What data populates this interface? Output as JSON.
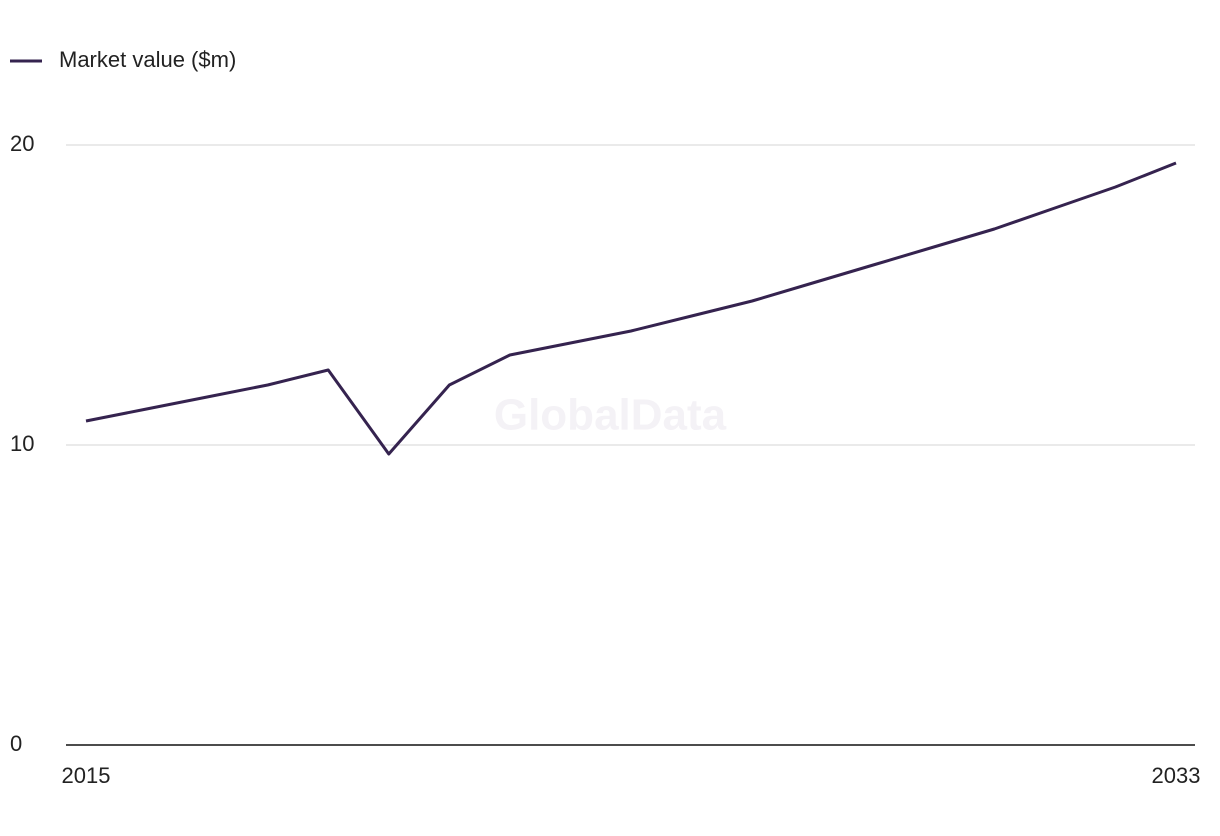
{
  "chart_data": {
    "type": "line",
    "watermark": "GlobalData",
    "x": [
      2015,
      2016,
      2017,
      2018,
      2019,
      2020,
      2021,
      2022,
      2023,
      2024,
      2025,
      2026,
      2027,
      2028,
      2029,
      2030,
      2031,
      2032,
      2033
    ],
    "series": [
      {
        "name": "Market value ($m)",
        "color": "#35234f",
        "values": [
          10.8,
          11.2,
          11.6,
          12.0,
          12.5,
          9.7,
          12.0,
          13.0,
          13.4,
          13.8,
          14.3,
          14.8,
          15.4,
          16.0,
          16.6,
          17.2,
          17.9,
          18.6,
          19.4
        ]
      }
    ],
    "xlim": [
      2015,
      2033
    ],
    "xticks": [
      2015,
      2033
    ],
    "ylim": [
      0,
      20
    ],
    "yticks": [
      0,
      10,
      20
    ],
    "grid": true,
    "legend": "top-left"
  }
}
